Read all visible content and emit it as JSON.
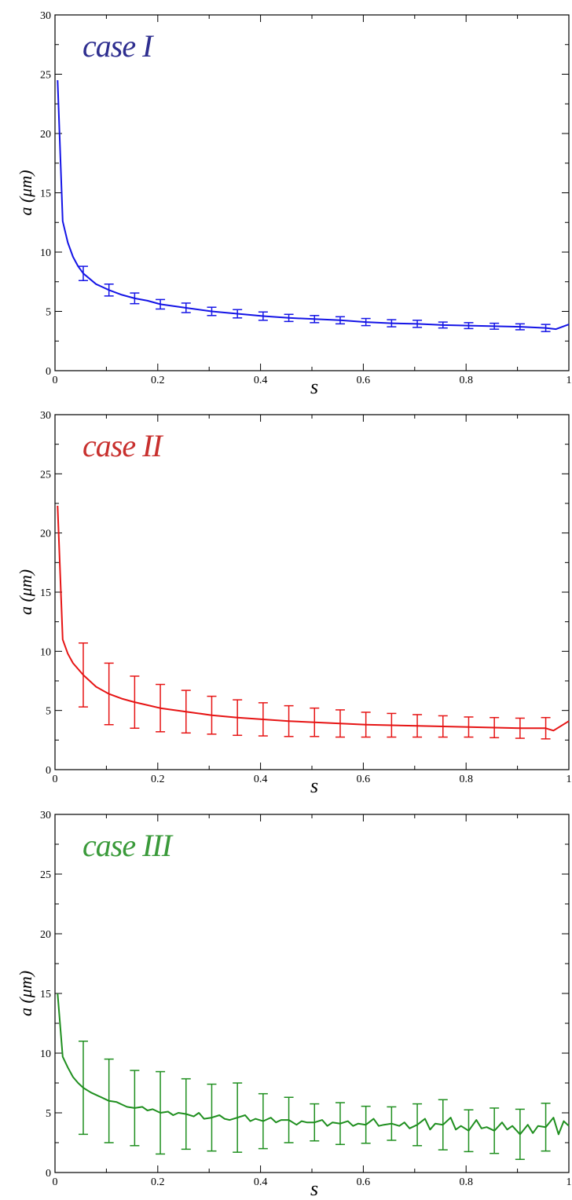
{
  "chart_data": [
    {
      "type": "line",
      "annotation": "case I",
      "annotation_color": "#2e2e8f",
      "xlabel": "s",
      "ylabel": "a (μm)",
      "xlim": [
        0,
        1
      ],
      "ylim": [
        0,
        30
      ],
      "x_ticks": [
        0,
        0.2,
        0.4,
        0.6,
        0.8,
        1
      ],
      "x_tick_labels": [
        "0",
        "0.2",
        "0.4",
        "0.6",
        "0.8",
        "1"
      ],
      "y_ticks": [
        0,
        5,
        10,
        15,
        20,
        25,
        30
      ],
      "y_tick_labels": [
        "0",
        "5",
        "10",
        "15",
        "20",
        "25",
        "30"
      ],
      "grid": false,
      "series": [
        {
          "color": "#1414e6",
          "x": [
            0.005,
            0.015,
            0.025,
            0.035,
            0.045,
            0.055,
            0.08,
            0.105,
            0.13,
            0.155,
            0.18,
            0.205,
            0.255,
            0.305,
            0.355,
            0.405,
            0.455,
            0.505,
            0.555,
            0.605,
            0.655,
            0.705,
            0.755,
            0.805,
            0.855,
            0.905,
            0.955,
            0.975,
            1.0
          ],
          "y": [
            24.5,
            12.6,
            10.8,
            9.6,
            8.8,
            8.2,
            7.3,
            6.8,
            6.4,
            6.1,
            5.9,
            5.6,
            5.3,
            5.0,
            4.8,
            4.6,
            4.45,
            4.35,
            4.25,
            4.1,
            4.0,
            3.95,
            3.85,
            3.8,
            3.75,
            3.7,
            3.6,
            3.5,
            3.9
          ]
        }
      ],
      "error_bars": {
        "x": [
          0.055,
          0.105,
          0.155,
          0.205,
          0.255,
          0.305,
          0.355,
          0.405,
          0.455,
          0.505,
          0.555,
          0.605,
          0.655,
          0.705,
          0.755,
          0.805,
          0.855,
          0.905,
          0.955
        ],
        "y": [
          8.2,
          6.8,
          6.1,
          5.6,
          5.3,
          5.0,
          4.8,
          4.6,
          4.45,
          4.35,
          4.25,
          4.1,
          4.0,
          3.95,
          3.85,
          3.8,
          3.75,
          3.7,
          3.6
        ],
        "err": [
          0.6,
          0.5,
          0.45,
          0.4,
          0.4,
          0.35,
          0.35,
          0.35,
          0.3,
          0.3,
          0.3,
          0.3,
          0.3,
          0.3,
          0.25,
          0.25,
          0.25,
          0.25,
          0.3
        ]
      }
    },
    {
      "type": "line",
      "annotation": "case II",
      "annotation_color": "#c8302e",
      "xlabel": "s",
      "ylabel": "a (μm)",
      "xlim": [
        0,
        1
      ],
      "ylim": [
        0,
        30
      ],
      "x_ticks": [
        0,
        0.2,
        0.4,
        0.6,
        0.8,
        1
      ],
      "x_tick_labels": [
        "0",
        "0.2",
        "0.4",
        "0.6",
        "0.8",
        "1"
      ],
      "y_ticks": [
        0,
        5,
        10,
        15,
        20,
        25,
        30
      ],
      "y_tick_labels": [
        "0",
        "5",
        "10",
        "15",
        "20",
        "25",
        "30"
      ],
      "grid": false,
      "series": [
        {
          "color": "#e61414",
          "x": [
            0.005,
            0.015,
            0.025,
            0.035,
            0.045,
            0.055,
            0.08,
            0.105,
            0.13,
            0.155,
            0.18,
            0.205,
            0.255,
            0.305,
            0.355,
            0.405,
            0.455,
            0.505,
            0.555,
            0.605,
            0.655,
            0.705,
            0.755,
            0.805,
            0.855,
            0.905,
            0.955,
            0.97,
            1.0
          ],
          "y": [
            22.3,
            11.0,
            9.8,
            9.0,
            8.5,
            8.0,
            7.0,
            6.4,
            6.0,
            5.7,
            5.45,
            5.2,
            4.9,
            4.6,
            4.4,
            4.25,
            4.1,
            4.0,
            3.9,
            3.8,
            3.75,
            3.7,
            3.65,
            3.6,
            3.55,
            3.5,
            3.5,
            3.3,
            4.1
          ]
        }
      ],
      "error_bars": {
        "x": [
          0.055,
          0.105,
          0.155,
          0.205,
          0.255,
          0.305,
          0.355,
          0.405,
          0.455,
          0.505,
          0.555,
          0.605,
          0.655,
          0.705,
          0.755,
          0.805,
          0.855,
          0.905,
          0.955
        ],
        "y": [
          8.0,
          6.4,
          5.7,
          5.2,
          4.9,
          4.6,
          4.4,
          4.25,
          4.1,
          4.0,
          3.9,
          3.8,
          3.75,
          3.7,
          3.65,
          3.6,
          3.55,
          3.5,
          3.5
        ],
        "err": [
          2.7,
          2.6,
          2.2,
          2.0,
          1.8,
          1.6,
          1.5,
          1.4,
          1.3,
          1.2,
          1.15,
          1.05,
          1.0,
          0.95,
          0.9,
          0.85,
          0.85,
          0.85,
          0.9
        ]
      }
    },
    {
      "type": "line",
      "annotation": "case III",
      "annotation_color": "#3a9a3a",
      "xlabel": "s",
      "ylabel": "a (μm)",
      "xlim": [
        0,
        1
      ],
      "ylim": [
        0,
        30
      ],
      "x_ticks": [
        0,
        0.2,
        0.4,
        0.6,
        0.8,
        1
      ],
      "x_tick_labels": [
        "0",
        "0.2",
        "0.4",
        "0.6",
        "0.8",
        "1"
      ],
      "y_ticks": [
        0,
        5,
        10,
        15,
        20,
        25,
        30
      ],
      "y_tick_labels": [
        "0",
        "5",
        "10",
        "15",
        "20",
        "25",
        "30"
      ],
      "grid": false,
      "series": [
        {
          "color": "#1f8f1f",
          "x": [
            0.005,
            0.015,
            0.025,
            0.035,
            0.045,
            0.055,
            0.07,
            0.08,
            0.09,
            0.105,
            0.12,
            0.13,
            0.14,
            0.155,
            0.17,
            0.18,
            0.19,
            0.205,
            0.22,
            0.23,
            0.24,
            0.255,
            0.27,
            0.28,
            0.29,
            0.305,
            0.32,
            0.33,
            0.34,
            0.355,
            0.37,
            0.38,
            0.39,
            0.405,
            0.42,
            0.43,
            0.44,
            0.455,
            0.47,
            0.48,
            0.49,
            0.505,
            0.52,
            0.53,
            0.54,
            0.555,
            0.57,
            0.58,
            0.59,
            0.605,
            0.62,
            0.63,
            0.64,
            0.655,
            0.67,
            0.68,
            0.69,
            0.705,
            0.72,
            0.73,
            0.74,
            0.755,
            0.77,
            0.78,
            0.79,
            0.805,
            0.82,
            0.83,
            0.84,
            0.855,
            0.87,
            0.88,
            0.89,
            0.905,
            0.92,
            0.93,
            0.94,
            0.955,
            0.97,
            0.98,
            0.99,
            1.0
          ],
          "y": [
            15.0,
            9.7,
            8.8,
            8.0,
            7.5,
            7.1,
            6.7,
            6.5,
            6.3,
            6.0,
            5.9,
            5.7,
            5.5,
            5.4,
            5.5,
            5.2,
            5.3,
            5.0,
            5.1,
            4.8,
            5.0,
            4.9,
            4.7,
            5.0,
            4.5,
            4.6,
            4.8,
            4.5,
            4.4,
            4.6,
            4.8,
            4.3,
            4.5,
            4.3,
            4.6,
            4.2,
            4.4,
            4.4,
            4.0,
            4.3,
            4.2,
            4.2,
            4.4,
            3.9,
            4.2,
            4.1,
            4.3,
            3.9,
            4.1,
            4.0,
            4.5,
            3.9,
            4.0,
            4.1,
            3.9,
            4.2,
            3.7,
            4.0,
            4.5,
            3.6,
            4.1,
            4.0,
            4.6,
            3.6,
            3.9,
            3.5,
            4.4,
            3.7,
            3.8,
            3.5,
            4.2,
            3.6,
            3.9,
            3.2,
            4.0,
            3.3,
            3.9,
            3.8,
            4.6,
            3.2,
            4.3,
            3.9
          ]
        }
      ],
      "error_bars": {
        "x": [
          0.055,
          0.105,
          0.155,
          0.205,
          0.255,
          0.305,
          0.355,
          0.405,
          0.455,
          0.505,
          0.555,
          0.605,
          0.655,
          0.705,
          0.755,
          0.805,
          0.855,
          0.905,
          0.955
        ],
        "y": [
          7.1,
          6.0,
          5.4,
          5.0,
          4.9,
          4.6,
          4.6,
          4.3,
          4.4,
          4.2,
          4.1,
          4.0,
          4.1,
          4.0,
          4.0,
          3.5,
          3.5,
          3.2,
          3.8
        ],
        "err": [
          3.9,
          3.5,
          3.15,
          3.45,
          2.95,
          2.8,
          2.9,
          2.3,
          1.9,
          1.55,
          1.75,
          1.55,
          1.4,
          1.75,
          2.1,
          1.75,
          1.9,
          2.1,
          2.0
        ]
      }
    }
  ]
}
